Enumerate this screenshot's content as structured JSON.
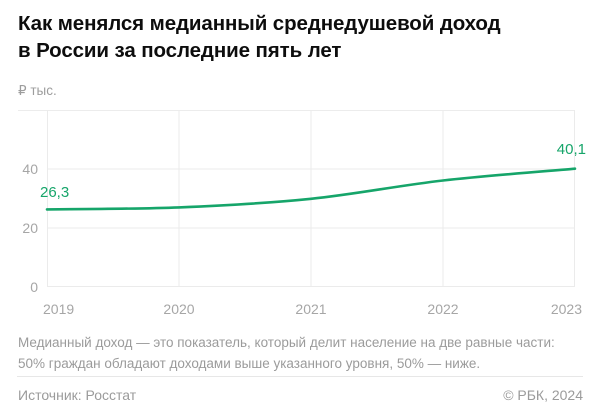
{
  "title_lines": [
    "Как менялся медианный среднедушевой доход",
    "в России за последние пять лет"
  ],
  "units_label": "₽ тыс.",
  "chart_data": {
    "type": "line",
    "title": "Как менялся медианный среднедушевой доход в России за последние пять лет",
    "xlabel": "",
    "ylabel": "₽ тыс.",
    "categories": [
      "2019",
      "2020",
      "2021",
      "2022",
      "2023"
    ],
    "series": [
      {
        "name": "Медианный среднедушевой доход, ₽ тыс.",
        "values": [
          26.3,
          27.0,
          29.9,
          36.1,
          40.1
        ]
      }
    ],
    "first_point_label": "26,3",
    "last_point_label": "40,1",
    "yticks": [
      0,
      20,
      40
    ],
    "ylim": [
      0,
      60
    ],
    "grid": true,
    "legend": "none",
    "line_color": "#16a56a",
    "grid_color": "#ebebeb",
    "axis_text_color": "#a6a6a6"
  },
  "note_lines": [
    "Медианный доход — это показатель, который делит население на две равные части:",
    "50% граждан обладают доходами выше указанного уровня, 50% — ниже."
  ],
  "footer": {
    "source": "Источник: Росстат",
    "copyright": "© РБК, 2024"
  }
}
